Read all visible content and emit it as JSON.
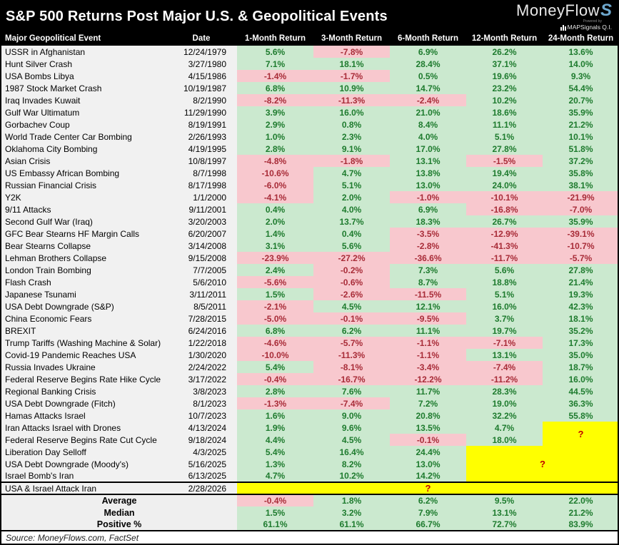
{
  "title": "S&P 500 Returns Post Major U.S. & Geopolitical Events",
  "logo": {
    "brand_text": "MoneyFlow",
    "brand_mark": "S",
    "powered_by": "Powered by",
    "subbrand": "MAPSignals Q.I."
  },
  "source": "Source: MoneyFlows.com, FactSet",
  "colors": {
    "header_bg": "#000000",
    "brand_accent": "#6fa9cf",
    "positive_bg": "#cbe9cf",
    "positive_text": "#1e7b2e",
    "negative_bg": "#f8c8ce",
    "negative_text": "#a82c38",
    "pending_bg": "#ffff00",
    "unknown_text": "#c00000",
    "label_col_bg": "#f1f1f1",
    "summary_label_bg": "#efefef"
  },
  "chart_data": {
    "type": "table",
    "title": "S&P 500 Returns Post Major U.S. & Geopolitical Events",
    "columns": [
      "Major Geopolitical Event",
      "Date",
      "1-Month Return",
      "3-Month Return",
      "6-Month Return",
      "12-Month Return",
      "24-Month Return"
    ],
    "unknown_marker": "?",
    "rows": [
      {
        "event": "USSR in Afghanistan",
        "date": "12/24/1979",
        "returns": [
          "5.6%",
          "-7.8%",
          "6.9%",
          "26.2%",
          "13.6%"
        ]
      },
      {
        "event": "Hunt Silver Crash",
        "date": "3/27/1980",
        "returns": [
          "7.1%",
          "18.1%",
          "28.4%",
          "37.1%",
          "14.0%"
        ]
      },
      {
        "event": "USA Bombs Libya",
        "date": "4/15/1986",
        "returns": [
          "-1.4%",
          "-1.7%",
          "0.5%",
          "19.6%",
          "9.3%"
        ]
      },
      {
        "event": "1987 Stock Market Crash",
        "date": "10/19/1987",
        "returns": [
          "6.8%",
          "10.9%",
          "14.7%",
          "23.2%",
          "54.4%"
        ]
      },
      {
        "event": "Iraq Invades Kuwait",
        "date": "8/2/1990",
        "returns": [
          "-8.2%",
          "-11.3%",
          "-2.4%",
          "10.2%",
          "20.7%"
        ]
      },
      {
        "event": "Gulf War Ultimatum",
        "date": "11/29/1990",
        "returns": [
          "3.9%",
          "16.0%",
          "21.0%",
          "18.6%",
          "35.9%"
        ]
      },
      {
        "event": "Gorbachev Coup",
        "date": "8/19/1991",
        "returns": [
          "2.9%",
          "0.8%",
          "8.4%",
          "11.1%",
          "21.2%"
        ]
      },
      {
        "event": "World Trade Center Car Bombing",
        "date": "2/26/1993",
        "returns": [
          "1.0%",
          "2.3%",
          "4.0%",
          "5.1%",
          "10.1%"
        ]
      },
      {
        "event": "Oklahoma City Bombing",
        "date": "4/19/1995",
        "returns": [
          "2.8%",
          "9.1%",
          "17.0%",
          "27.8%",
          "51.8%"
        ]
      },
      {
        "event": "Asian Crisis",
        "date": "10/8/1997",
        "returns": [
          "-4.8%",
          "-1.8%",
          "13.1%",
          "-1.5%",
          "37.2%"
        ]
      },
      {
        "event": "US Embassy African Bombing",
        "date": "8/7/1998",
        "returns": [
          "-10.6%",
          "4.7%",
          "13.8%",
          "19.4%",
          "35.8%"
        ]
      },
      {
        "event": "Russian Financial Crisis",
        "date": "8/17/1998",
        "returns": [
          "-6.0%",
          "5.1%",
          "13.0%",
          "24.0%",
          "38.1%"
        ]
      },
      {
        "event": "Y2K",
        "date": "1/1/2000",
        "returns": [
          "-4.1%",
          "2.0%",
          "-1.0%",
          "-10.1%",
          "-21.9%"
        ]
      },
      {
        "event": "9/11 Attacks",
        "date": "9/11/2001",
        "returns": [
          "0.4%",
          "4.0%",
          "6.9%",
          "-16.8%",
          "-7.0%"
        ]
      },
      {
        "event": "Second Gulf War (Iraq)",
        "date": "3/20/2003",
        "returns": [
          "2.0%",
          "13.7%",
          "18.3%",
          "26.7%",
          "35.9%"
        ]
      },
      {
        "event": "GFC Bear Stearns HF Margin Calls",
        "date": "6/20/2007",
        "returns": [
          "1.4%",
          "0.4%",
          "-3.5%",
          "-12.9%",
          "-39.1%"
        ]
      },
      {
        "event": "Bear Stearns Collapse",
        "date": "3/14/2008",
        "returns": [
          "3.1%",
          "5.6%",
          "-2.8%",
          "-41.3%",
          "-10.7%"
        ]
      },
      {
        "event": "Lehman Brothers Collapse",
        "date": "9/15/2008",
        "returns": [
          "-23.9%",
          "-27.2%",
          "-36.6%",
          "-11.7%",
          "-5.7%"
        ]
      },
      {
        "event": "London Train Bombing",
        "date": "7/7/2005",
        "returns": [
          "2.4%",
          "-0.2%",
          "7.3%",
          "5.6%",
          "27.8%"
        ]
      },
      {
        "event": "Flash Crash",
        "date": "5/6/2010",
        "returns": [
          "-5.6%",
          "-0.6%",
          "8.7%",
          "18.8%",
          "21.4%"
        ]
      },
      {
        "event": "Japanese Tsunami",
        "date": "3/11/2011",
        "returns": [
          "1.5%",
          "-2.6%",
          "-11.5%",
          "5.1%",
          "19.3%"
        ]
      },
      {
        "event": "USA Debt Downgrade (S&P)",
        "date": "8/5/2011",
        "returns": [
          "-2.1%",
          "4.5%",
          "12.1%",
          "16.0%",
          "42.3%"
        ]
      },
      {
        "event": "China Economic Fears",
        "date": "7/28/2015",
        "returns": [
          "-5.0%",
          "-0.1%",
          "-9.5%",
          "3.7%",
          "18.1%"
        ]
      },
      {
        "event": "BREXIT",
        "date": "6/24/2016",
        "returns": [
          "6.8%",
          "6.2%",
          "11.1%",
          "19.7%",
          "35.2%"
        ]
      },
      {
        "event": "Trump Tariffs (Washing Machine & Solar)",
        "date": "1/22/2018",
        "returns": [
          "-4.6%",
          "-5.7%",
          "-1.1%",
          "-7.1%",
          "17.3%"
        ]
      },
      {
        "event": "Covid-19 Pandemic Reaches USA",
        "date": "1/30/2020",
        "returns": [
          "-10.0%",
          "-11.3%",
          "-1.1%",
          "13.1%",
          "35.0%"
        ]
      },
      {
        "event": "Russia Invades Ukraine",
        "date": "2/24/2022",
        "returns": [
          "5.4%",
          "-8.1%",
          "-3.4%",
          "-7.4%",
          "18.7%"
        ]
      },
      {
        "event": "Federal Reserve Begins Rate Hike Cycle",
        "date": "3/17/2022",
        "returns": [
          "-0.4%",
          "-16.7%",
          "-12.2%",
          "-11.2%",
          "16.0%"
        ]
      },
      {
        "event": "Regional Banking Crisis",
        "date": "3/8/2023",
        "returns": [
          "2.8%",
          "7.6%",
          "11.7%",
          "28.3%",
          "44.5%"
        ]
      },
      {
        "event": "USA Debt Downgrade (Fitch)",
        "date": "8/1/2023",
        "returns": [
          "-1.3%",
          "-7.4%",
          "7.2%",
          "19.0%",
          "36.3%"
        ]
      },
      {
        "event": "Hamas Attacks Israel",
        "date": "10/7/2023",
        "returns": [
          "1.6%",
          "9.0%",
          "20.8%",
          "32.2%",
          "55.8%"
        ]
      },
      {
        "event": "Iran Attacks Israel with Drones",
        "date": "4/13/2024",
        "returns": [
          "1.9%",
          "9.6%",
          "13.5%",
          "4.7%",
          null
        ]
      },
      {
        "event": "Federal Reserve Begins Rate Cut Cycle",
        "date": "9/18/2024",
        "returns": [
          "4.4%",
          "4.5%",
          "-0.1%",
          "18.0%",
          null
        ]
      },
      {
        "event": "Liberation Day Selloff",
        "date": "4/3/2025",
        "returns": [
          "5.4%",
          "16.4%",
          "24.4%",
          null,
          null
        ]
      },
      {
        "event": "USA Debt Downgrade (Moody's)",
        "date": "5/16/2025",
        "returns": [
          "1.3%",
          "8.2%",
          "13.0%",
          null,
          null
        ]
      },
      {
        "event": "Israel Bomb's Iran",
        "date": "6/13/2025",
        "returns": [
          "4.7%",
          "10.2%",
          "14.2%",
          null,
          null
        ]
      },
      {
        "event": "USA & Israel Attack Iran",
        "date": "2/28/2026",
        "returns": [
          null,
          null,
          null,
          null,
          null
        ]
      }
    ],
    "unknown_regions": [
      {
        "row": 31,
        "col": 4,
        "row_span": 2,
        "col_span": 1
      },
      {
        "row": 33,
        "col": 3,
        "row_span": 3,
        "col_span": 2
      },
      {
        "row": 36,
        "col": 0,
        "row_span": 1,
        "col_span": 5
      }
    ],
    "summary": [
      {
        "label": "Average",
        "values": [
          "-0.4%",
          "1.8%",
          "6.2%",
          "9.5%",
          "22.0%"
        ]
      },
      {
        "label": "Median",
        "values": [
          "1.5%",
          "3.2%",
          "7.9%",
          "13.1%",
          "21.2%"
        ]
      },
      {
        "label": "Positive %",
        "values": [
          "61.1%",
          "61.1%",
          "66.7%",
          "72.7%",
          "83.9%"
        ]
      }
    ]
  }
}
